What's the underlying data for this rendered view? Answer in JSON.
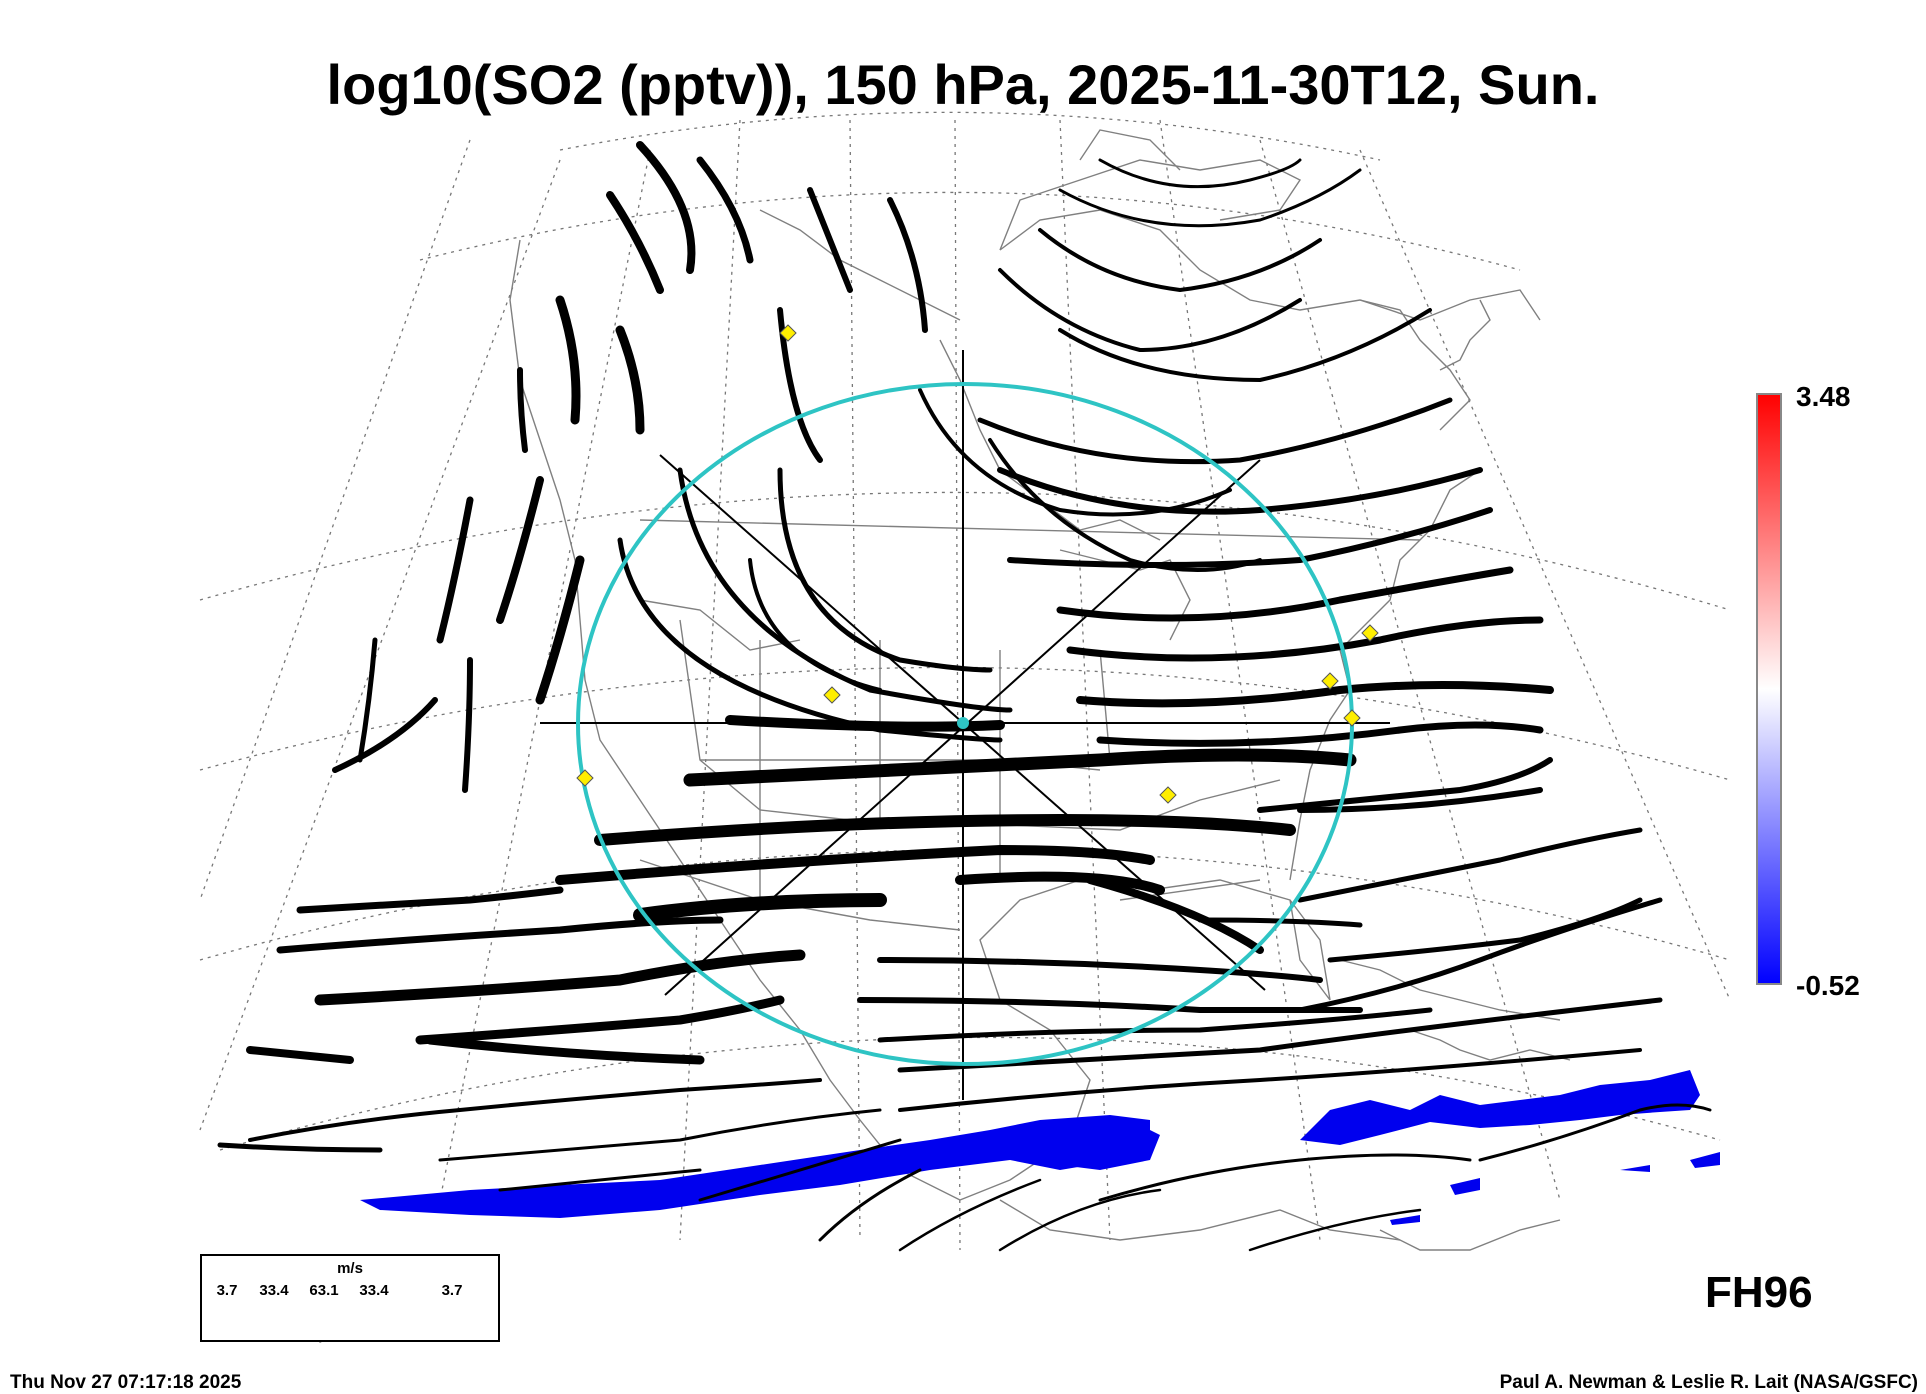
{
  "title": "log10(SO2 (pptv)), 150 hPa, 2025-11-30T12, Sun.",
  "colorbar": {
    "max_label": "3.48",
    "min_label": "-0.52",
    "top_color": "#ff0000",
    "mid_color": "#ffffff",
    "bottom_color": "#0000ff"
  },
  "forecast_hour": "FH96",
  "wind_legend": {
    "unit": "m/s",
    "values": [
      "3.7",
      "33.4",
      "63.1",
      "33.4",
      "3.7"
    ]
  },
  "footer": {
    "timestamp": "Thu Nov 27 07:17:18 2025",
    "credit": "Paul A. Newman & Leslie R. Lait (NASA/GSFC)"
  },
  "colors": {
    "circle": "#2ec4c4",
    "marker": "#ffee00",
    "so2_fill": "#0000ee",
    "streamline": "#000000",
    "coastline": "#808080"
  },
  "icons": [
    "site-marker-icon",
    "crosshair-icon",
    "arrow-icon"
  ]
}
